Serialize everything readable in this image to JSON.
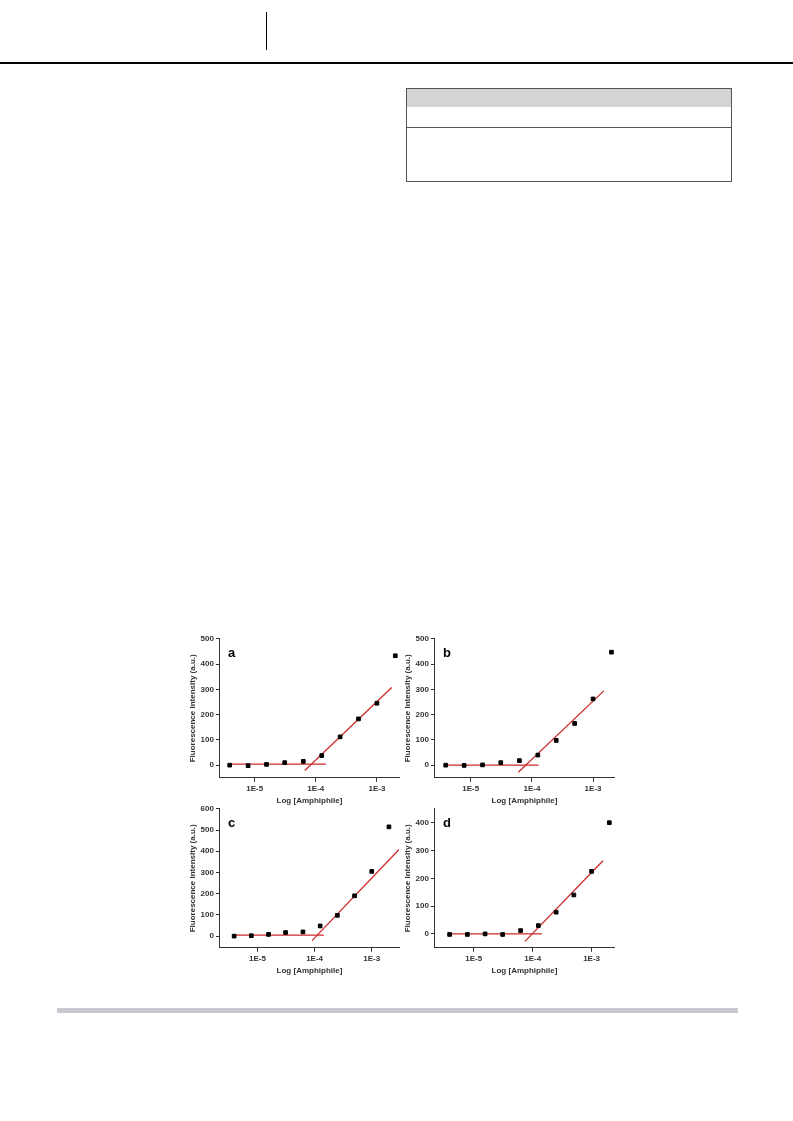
{
  "chart_data": [
    {
      "type": "scatter",
      "title": "a",
      "xlabel": "Log [Amphiphile]",
      "ylabel": "Fluorescence Intensity (a.u.)",
      "log": "x",
      "grid": false,
      "legend": false,
      "xlim": [
        2.7e-06,
        0.0023
      ],
      "xticks": [
        {
          "value": 1e-05,
          "label": "1E-5"
        },
        {
          "value": 0.0001,
          "label": "1E-4"
        },
        {
          "value": 0.001,
          "label": "1E-3"
        }
      ],
      "ylim": [
        -50,
        500
      ],
      "yticks": [
        0,
        100,
        200,
        300,
        400,
        500
      ],
      "series": [
        {
          "type": "scatter",
          "color": "#000000",
          "marker": "square",
          "x": [
            3.9e-06,
            7.8e-06,
            1.56e-05,
            3.1e-05,
            6.25e-05,
            0.000125,
            0.00025,
            0.0005,
            0.001,
            0.002
          ],
          "values": [
            0,
            -2,
            3,
            10,
            15,
            38,
            112,
            183,
            245,
            433
          ]
        },
        {
          "type": "line",
          "color": "#cc2a2a",
          "marker": "none",
          "line_style": "solid",
          "x": [
            4.1e-06,
            0.000147
          ],
          "values": [
            4,
            4
          ]
        },
        {
          "type": "line",
          "color": "#cc2a2a",
          "marker": "none",
          "line_style": "solid",
          "x": [
            6.6e-05,
            0.00175
          ],
          "values": [
            -21,
            307
          ]
        }
      ]
    },
    {
      "type": "scatter",
      "title": "b",
      "xlabel": "Log [Amphiphile]",
      "ylabel": "Fluorescence Intensity (a.u.)",
      "log": "x",
      "grid": false,
      "legend": false,
      "xlim": [
        2.6e-06,
        0.0022
      ],
      "xticks": [
        {
          "value": 1e-05,
          "label": "1E-5"
        },
        {
          "value": 0.0001,
          "label": "1E-4"
        },
        {
          "value": 0.001,
          "label": "1E-3"
        }
      ],
      "ylim": [
        -50,
        500
      ],
      "yticks": [
        0,
        100,
        200,
        300,
        400,
        500
      ],
      "series": [
        {
          "type": "scatter",
          "color": "#000000",
          "marker": "square",
          "x": [
            3.9e-06,
            7.8e-06,
            1.56e-05,
            3.1e-05,
            6.25e-05,
            0.000125,
            0.00025,
            0.0005,
            0.001,
            0.002
          ],
          "values": [
            0,
            -1,
            1,
            10,
            18,
            40,
            98,
            165,
            262,
            447
          ]
        },
        {
          "type": "line",
          "color": "#cc2a2a",
          "marker": "none",
          "line_style": "solid",
          "x": [
            4e-06,
            0.000128
          ],
          "values": [
            0,
            0
          ]
        },
        {
          "type": "line",
          "color": "#cc2a2a",
          "marker": "none",
          "line_style": "solid",
          "x": [
            6e-05,
            0.0015
          ],
          "values": [
            -28,
            294
          ]
        }
      ]
    },
    {
      "type": "scatter",
      "title": "c",
      "xlabel": "Log [Amphiphile]",
      "ylabel": "Fluorescence Intensity (a.u.)",
      "log": "x",
      "grid": false,
      "legend": false,
      "xlim": [
        2.2e-06,
        0.003
      ],
      "xticks": [
        {
          "value": 1e-05,
          "label": "1E-5"
        },
        {
          "value": 0.0001,
          "label": "1E-4"
        },
        {
          "value": 0.001,
          "label": "1E-3"
        }
      ],
      "ylim": [
        -55,
        600
      ],
      "yticks": [
        0,
        100,
        200,
        300,
        400,
        500,
        600
      ],
      "series": [
        {
          "type": "scatter",
          "color": "#000000",
          "marker": "square",
          "x": [
            3.9e-06,
            7.8e-06,
            1.56e-05,
            3.1e-05,
            6.25e-05,
            0.000125,
            0.00025,
            0.0005,
            0.001,
            0.002
          ],
          "values": [
            0,
            2,
            8,
            17,
            20,
            48,
            98,
            190,
            305,
            515
          ]
        },
        {
          "type": "line",
          "color": "#cc2a2a",
          "marker": "none",
          "line_style": "solid",
          "x": [
            3.9e-06,
            0.000145
          ],
          "values": [
            5,
            5
          ]
        },
        {
          "type": "line",
          "color": "#cc2a2a",
          "marker": "none",
          "line_style": "solid",
          "x": [
            9e-05,
            0.003
          ],
          "values": [
            -21,
            408
          ]
        }
      ]
    },
    {
      "type": "scatter",
      "title": "d",
      "xlabel": "Log [Amphiphile]",
      "ylabel": "Fluorescence Intensity (a.u.)",
      "log": "x",
      "grid": false,
      "legend": false,
      "xlim": [
        2.2e-06,
        0.0024
      ],
      "xticks": [
        {
          "value": 1e-05,
          "label": "1E-5"
        },
        {
          "value": 0.0001,
          "label": "1E-4"
        },
        {
          "value": 0.001,
          "label": "1E-3"
        }
      ],
      "ylim": [
        -50,
        450
      ],
      "yticks": [
        0,
        100,
        200,
        300,
        400
      ],
      "series": [
        {
          "type": "scatter",
          "color": "#000000",
          "marker": "square",
          "x": [
            3.9e-06,
            7.8e-06,
            1.56e-05,
            3.1e-05,
            6.25e-05,
            0.000125,
            0.00025,
            0.0005,
            0.001,
            0.002
          ],
          "values": [
            -2,
            -2,
            0,
            -2,
            12,
            30,
            78,
            140,
            225,
            400
          ]
        },
        {
          "type": "line",
          "color": "#cc2a2a",
          "marker": "none",
          "line_style": "solid",
          "x": [
            3.9e-06,
            0.000143
          ],
          "values": [
            0,
            0
          ]
        },
        {
          "type": "line",
          "color": "#cc2a2a",
          "marker": "none",
          "line_style": "solid",
          "x": [
            7.4e-05,
            0.00156
          ],
          "values": [
            -27,
            263
          ]
        }
      ]
    }
  ]
}
